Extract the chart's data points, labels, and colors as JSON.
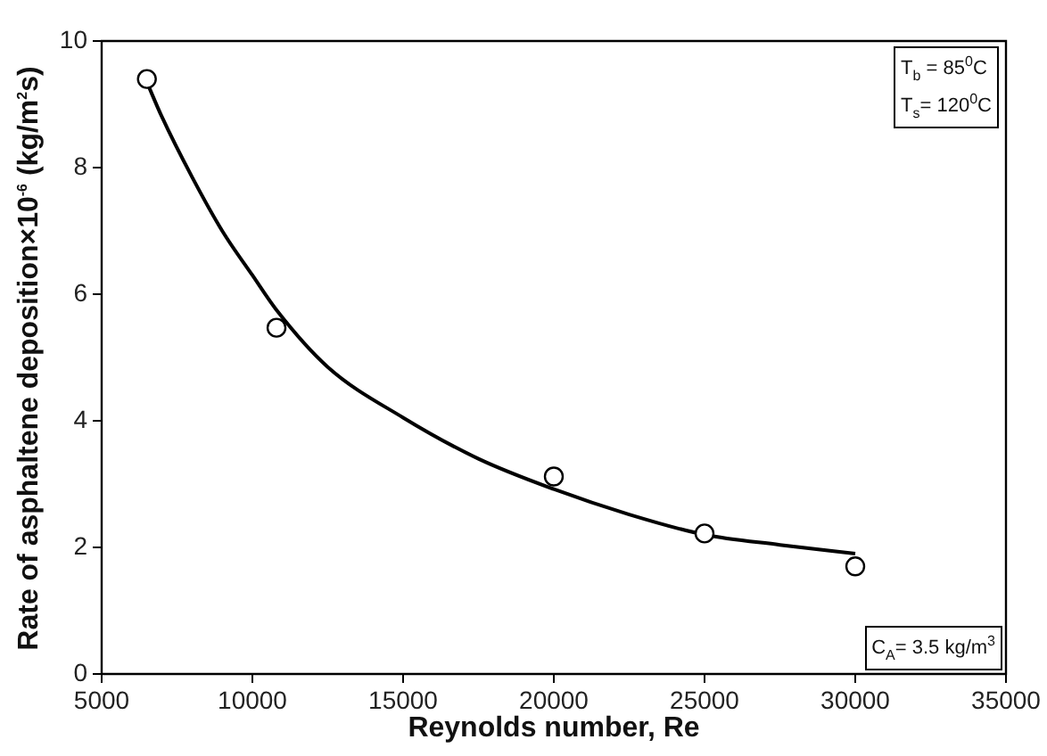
{
  "chart_data": {
    "type": "scatter",
    "xlabel": "Reynolds number, Re",
    "ylabel": "Rate of asphaltene deposition×10$^{-6}$ (kg/m$^{2}$s)",
    "xlim": [
      5000,
      35000
    ],
    "xticks": [
      5000,
      10000,
      15000,
      20000,
      25000,
      30000,
      35000
    ],
    "ylim": [
      0,
      10
    ],
    "yticks": [
      0,
      2,
      4,
      6,
      8,
      10
    ],
    "grid": false,
    "legend": false,
    "annotations": [
      "T$_{b}$ = 85$^{0}$C",
      "T$_{s}$= 120$^{0}$C",
      "C$_{A}$= 3.5 kg/m$^{3}$"
    ],
    "series": [
      {
        "color": "#000000",
        "marker": "circle",
        "x": [
          6500,
          10800,
          20000,
          25000,
          30000
        ],
        "values": [
          9.4,
          5.47,
          3.12,
          2.22,
          1.7
        ]
      },
      {
        "type": "line",
        "color": "#000000",
        "marker": "none",
        "line_style": "solid",
        "x": [
          6500,
          7000,
          8000,
          9000,
          10000,
          10800,
          12500,
          15000,
          17500,
          20000,
          22500,
          25000,
          27500,
          30000
        ],
        "values": [
          9.35,
          8.8,
          7.85,
          7.0,
          6.3,
          5.75,
          4.85,
          4.05,
          3.4,
          2.92,
          2.52,
          2.2,
          2.04,
          1.9
        ]
      }
    ]
  }
}
